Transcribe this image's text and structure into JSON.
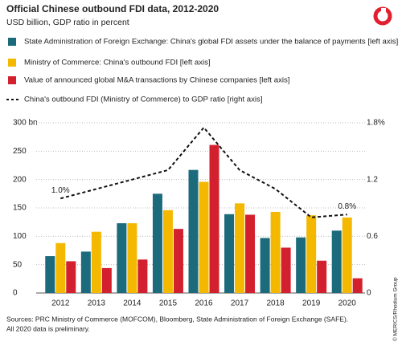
{
  "chart_data": {
    "type": "bar",
    "title": "Official Chinese outbound FDI data, 2012-2020",
    "subtitle": "USD billion, GDP ratio in percent",
    "categories": [
      "2012",
      "2013",
      "2014",
      "2015",
      "2016",
      "2017",
      "2018",
      "2019",
      "2020"
    ],
    "series": [
      {
        "name": "State Administration of Foreign Exchange: China's global FDI assets under the balance of payments [left axis]",
        "color": "#1b6b7d",
        "values": [
          65,
          73,
          123,
          175,
          217,
          139,
          97,
          98,
          110
        ]
      },
      {
        "name": "Ministry of Commerce: China's outbound FDI [left axis]",
        "color": "#f4b800",
        "values": [
          88,
          108,
          123,
          146,
          196,
          158,
          143,
          137,
          133
        ]
      },
      {
        "name": "Value of announced global M&A transactions by Chinese companies [left axis]",
        "color": "#d3202f",
        "values": [
          56,
          44,
          59,
          113,
          261,
          138,
          80,
          57,
          26
        ]
      },
      {
        "name": "China's outbound FDI (Ministry of Commerce) to GDP ratio [right axis]",
        "type": "line",
        "axis": "y2",
        "color": "#111111",
        "values": [
          1.0,
          1.1,
          1.2,
          1.3,
          1.75,
          1.3,
          1.1,
          0.8,
          0.83
        ],
        "value_labels": [
          "1.0%",
          null,
          null,
          null,
          null,
          null,
          null,
          null,
          "0.8%"
        ]
      }
    ],
    "ylim": [
      0,
      300
    ],
    "yticks": [
      0,
      50,
      100,
      150,
      200,
      250,
      {
        "value": 300,
        "label": "300 bn"
      }
    ],
    "y2lim": [
      0,
      1.8
    ],
    "y2ticks": [
      0,
      0.6,
      1.2,
      {
        "value": 1.8,
        "label": "1.8%"
      }
    ],
    "grid": true,
    "sources": [
      "Sources: PRC Ministry of Commerce (MOFCOM), Bloomberg, State Administration of Foreign Exchange (SAFE).",
      "All 2020 data is preliminary."
    ],
    "credit": "© MERICS/Rhodium Group"
  }
}
